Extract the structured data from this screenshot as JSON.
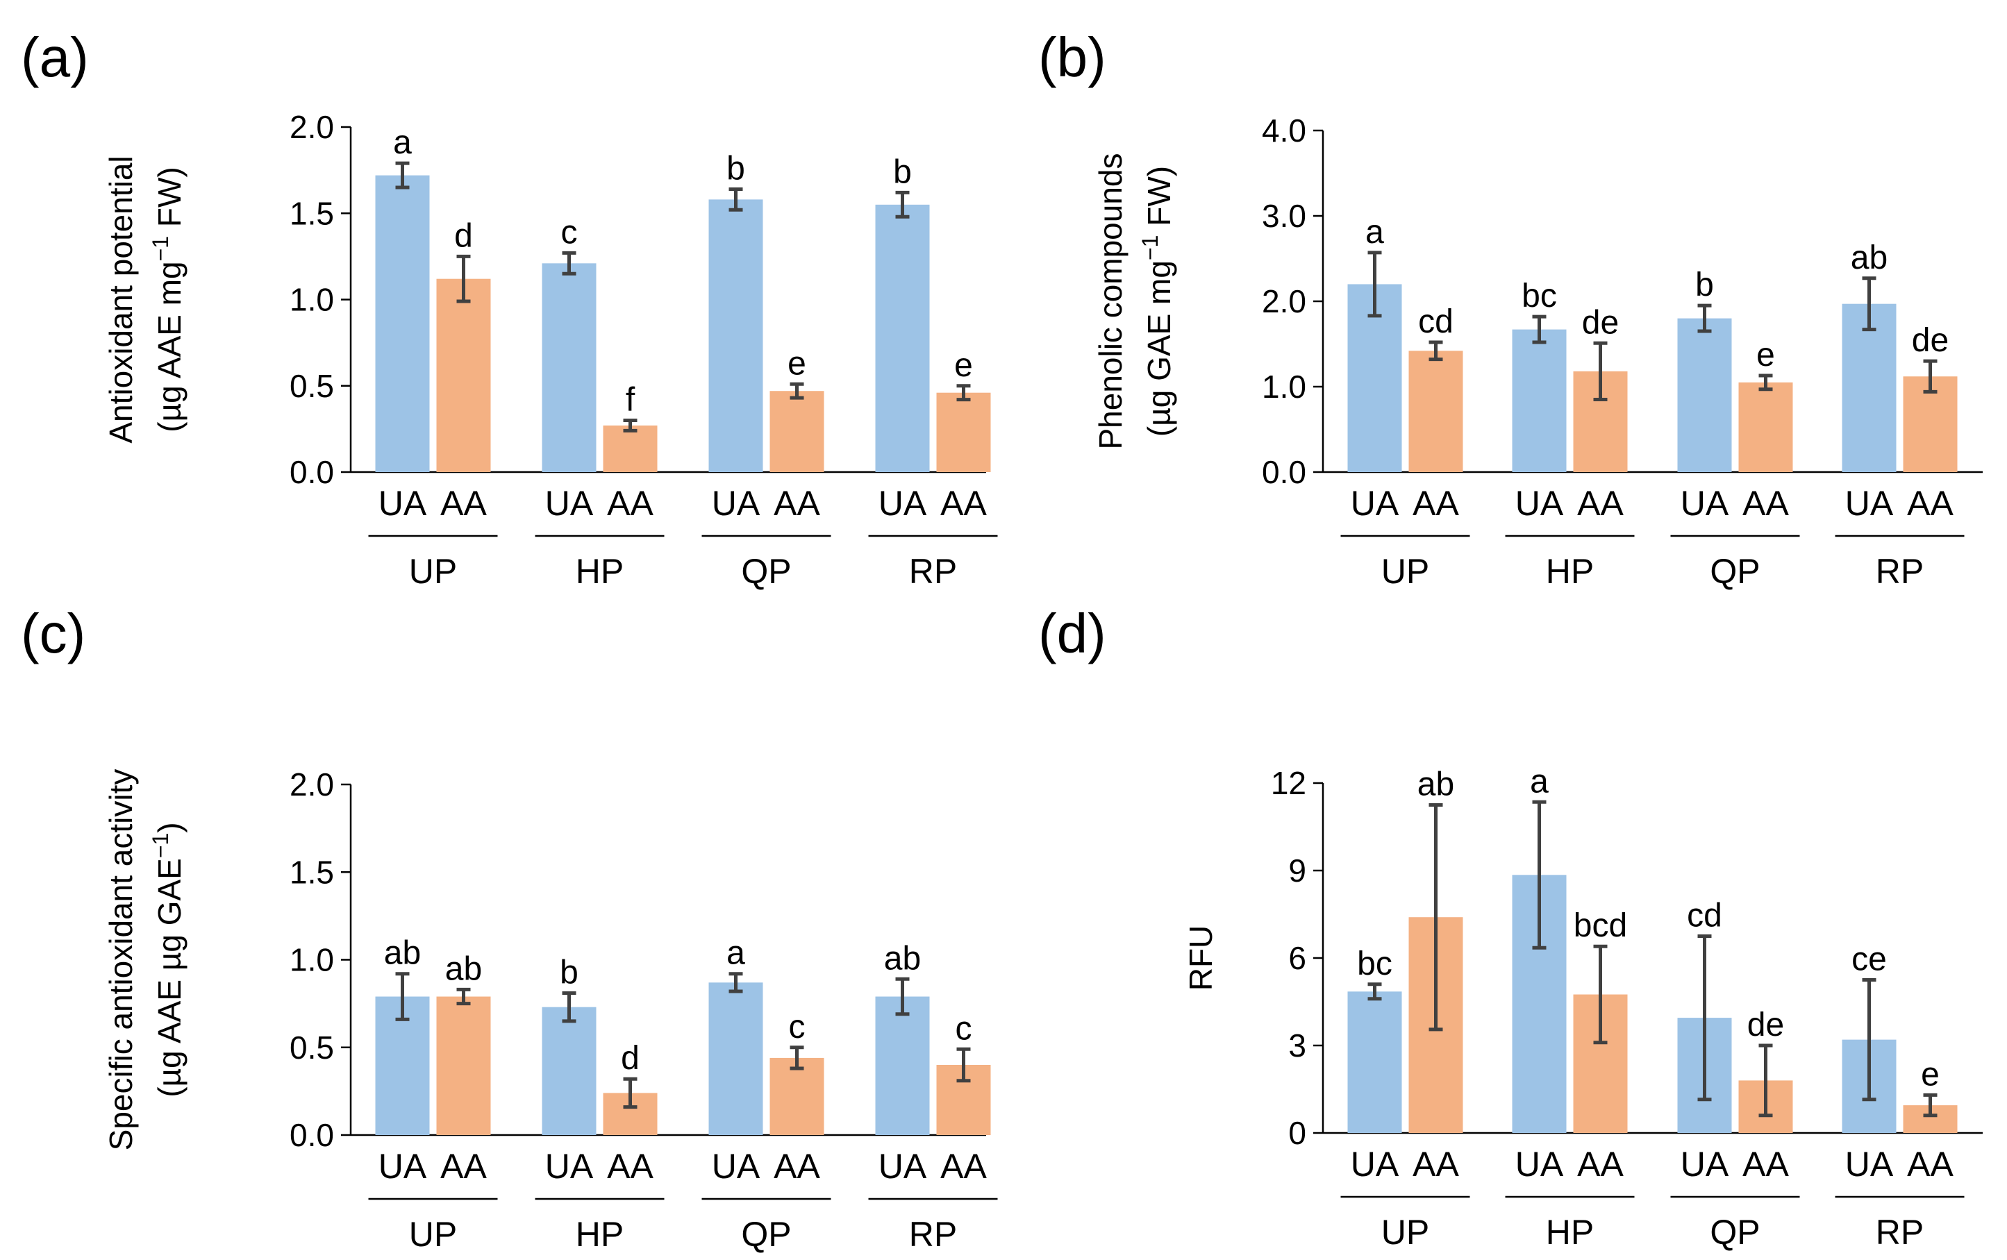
{
  "figure": {
    "legend_colors": {
      "UA": "#9DC3E6",
      "AA": "#F4B183"
    }
  },
  "chart_data": [
    {
      "panel": "(a)",
      "type": "bar",
      "ylabel_line1": "Antioxidant potential",
      "ylabel_line2_prefix": "(µg AAE mg",
      "ylabel_line2_sup": "−1",
      "ylabel_line2_suffix": " FW)",
      "ylim": [
        0,
        2.0
      ],
      "yticks": [
        "0.0",
        "0.5",
        "1.0",
        "1.5",
        "2.0"
      ],
      "ytick_values": [
        0,
        0.5,
        1.0,
        1.5,
        2.0
      ],
      "groups": [
        "UP",
        "HP",
        "QP",
        "RP"
      ],
      "subcategories": [
        "UA",
        "AA"
      ],
      "series": [
        {
          "name": "UA",
          "color": "#9DC3E6",
          "values": [
            1.72,
            1.21,
            1.58,
            1.55
          ],
          "errors": [
            0.07,
            0.06,
            0.06,
            0.07
          ],
          "letters": [
            "a",
            "c",
            "b",
            "b"
          ]
        },
        {
          "name": "AA",
          "color": "#F4B183",
          "values": [
            1.12,
            0.27,
            0.47,
            0.46
          ],
          "errors": [
            0.13,
            0.03,
            0.04,
            0.04
          ],
          "letters": [
            "d",
            "f",
            "e",
            "e"
          ]
        }
      ]
    },
    {
      "panel": "(b)",
      "type": "bar",
      "ylabel_line1": "Phenolic compounds",
      "ylabel_line2_prefix": "(µg GAE mg",
      "ylabel_line2_sup": "−1",
      "ylabel_line2_suffix": " FW)",
      "ylim": [
        0,
        4.0
      ],
      "yticks": [
        "0.0",
        "1.0",
        "2.0",
        "3.0",
        "4.0"
      ],
      "ytick_values": [
        0,
        1.0,
        2.0,
        3.0,
        4.0
      ],
      "groups": [
        "UP",
        "HP",
        "QP",
        "RP"
      ],
      "subcategories": [
        "UA",
        "AA"
      ],
      "series": [
        {
          "name": "UA",
          "color": "#9DC3E6",
          "values": [
            2.2,
            1.67,
            1.8,
            1.97
          ],
          "errors": [
            0.37,
            0.15,
            0.15,
            0.3
          ],
          "letters": [
            "a",
            "bc",
            "b",
            "ab"
          ]
        },
        {
          "name": "AA",
          "color": "#F4B183",
          "values": [
            1.42,
            1.18,
            1.05,
            1.12
          ],
          "errors": [
            0.1,
            0.33,
            0.08,
            0.18
          ],
          "letters": [
            "cd",
            "de",
            "e",
            "de"
          ]
        }
      ]
    },
    {
      "panel": "(c)",
      "type": "bar",
      "ylabel_line1": "Specific antioxidant activity",
      "ylabel_line2_prefix": "(µg AAE µg GAE",
      "ylabel_line2_sup": "−1",
      "ylabel_line2_suffix": ")",
      "ylim": [
        0,
        2.0
      ],
      "yticks": [
        "0.0",
        "0.5",
        "1.0",
        "1.5",
        "2.0"
      ],
      "ytick_values": [
        0,
        0.5,
        1.0,
        1.5,
        2.0
      ],
      "groups": [
        "UP",
        "HP",
        "QP",
        "RP"
      ],
      "subcategories": [
        "UA",
        "AA"
      ],
      "series": [
        {
          "name": "UA",
          "color": "#9DC3E6",
          "values": [
            0.79,
            0.73,
            0.87,
            0.79
          ],
          "errors": [
            0.13,
            0.08,
            0.05,
            0.1
          ],
          "letters": [
            "ab",
            "b",
            "a",
            "ab"
          ]
        },
        {
          "name": "AA",
          "color": "#F4B183",
          "values": [
            0.79,
            0.24,
            0.44,
            0.4
          ],
          "errors": [
            0.04,
            0.08,
            0.06,
            0.09
          ],
          "letters": [
            "ab",
            "d",
            "c",
            "c"
          ]
        }
      ]
    },
    {
      "panel": "(d)",
      "type": "bar",
      "ylabel_line1": "RFU",
      "ylabel_line2_prefix": "",
      "ylabel_line2_sup": "",
      "ylabel_line2_suffix": "",
      "ylim": [
        0,
        12
      ],
      "yticks": [
        "0",
        "3",
        "6",
        "9",
        "12"
      ],
      "ytick_values": [
        0,
        3,
        6,
        9,
        12
      ],
      "groups": [
        "UP",
        "HP",
        "QP",
        "RP"
      ],
      "subcategories": [
        "UA",
        "AA"
      ],
      "series": [
        {
          "name": "UA",
          "color": "#9DC3E6",
          "values": [
            4.85,
            8.85,
            3.95,
            3.2
          ],
          "errors": [
            0.25,
            2.5,
            2.8,
            2.05
          ],
          "letters": [
            "bc",
            "a",
            "cd",
            "ce"
          ]
        },
        {
          "name": "AA",
          "color": "#F4B183",
          "values": [
            7.4,
            4.75,
            1.8,
            0.95
          ],
          "errors": [
            3.85,
            1.65,
            1.2,
            0.35
          ],
          "letters": [
            "ab",
            "bcd",
            "de",
            "e"
          ]
        }
      ]
    }
  ]
}
